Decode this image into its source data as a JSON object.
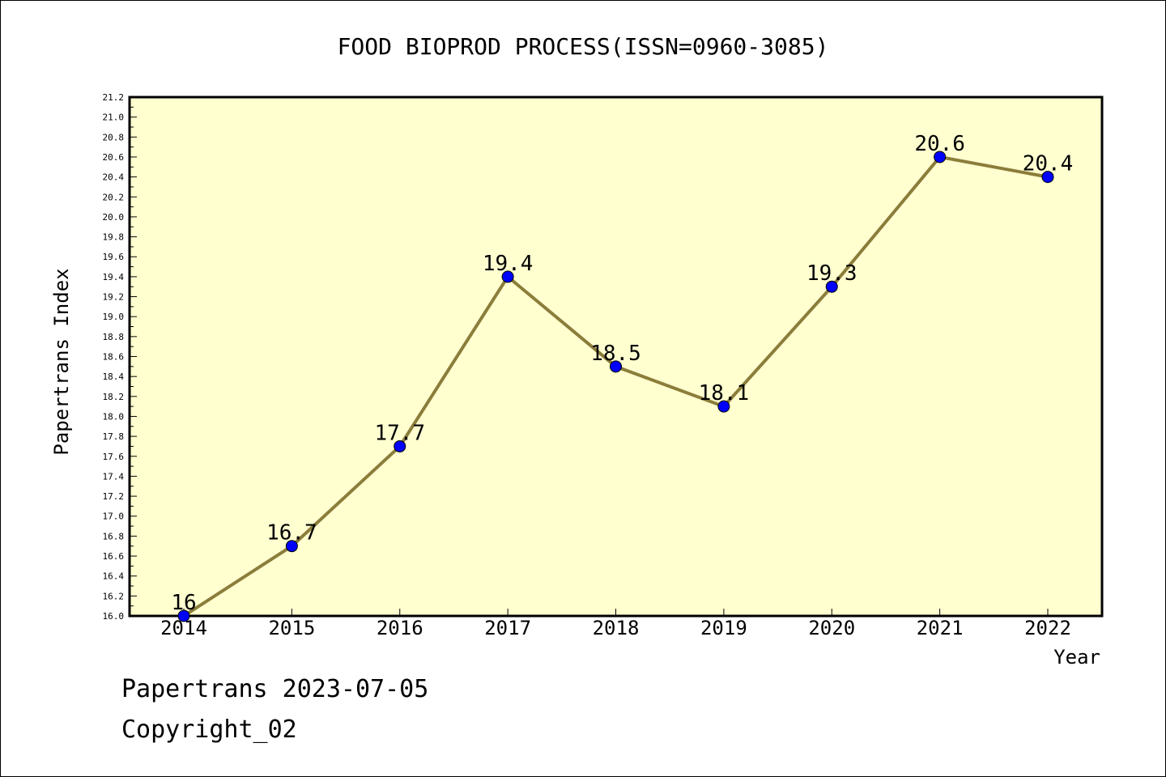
{
  "chart_data": {
    "type": "line",
    "title": "FOOD BIOPROD PROCESS(ISSN=0960-3085)",
    "xlabel": "Year",
    "ylabel": "Papertrans Index",
    "x": [
      "2014",
      "2015",
      "2016",
      "2017",
      "2018",
      "2019",
      "2020",
      "2021",
      "2022"
    ],
    "series": [
      {
        "values": [
          16.0,
          16.7,
          17.7,
          19.4,
          18.5,
          18.1,
          19.3,
          20.6,
          20.4
        ]
      }
    ],
    "data_labels": [
      "16",
      "16.7",
      "17.7",
      "19.4",
      "18.5",
      "18.1",
      "19.3",
      "20.6",
      "20.4"
    ],
    "ylim": [
      16.0,
      21.2
    ],
    "y_major_step": 0.2,
    "y_tick_labels": [
      "16.0",
      "16.2",
      "16.4",
      "16.6",
      "16.8",
      "17.0",
      "17.2",
      "17.4",
      "17.6",
      "17.8",
      "18.0",
      "18.2",
      "18.4",
      "18.6",
      "18.8",
      "19.0",
      "19.2",
      "19.4",
      "19.6",
      "19.8",
      "20.0",
      "20.2",
      "20.4",
      "20.6",
      "20.8",
      "21.0",
      "21.2"
    ],
    "grid": false,
    "legend": "none",
    "colors": {
      "plot_background": "#FFFFD0",
      "line": "#8B7D3A",
      "marker": "#0000FF"
    }
  },
  "footer": {
    "line1": "Papertrans 2023-07-05",
    "line2": "Copyright_02"
  }
}
